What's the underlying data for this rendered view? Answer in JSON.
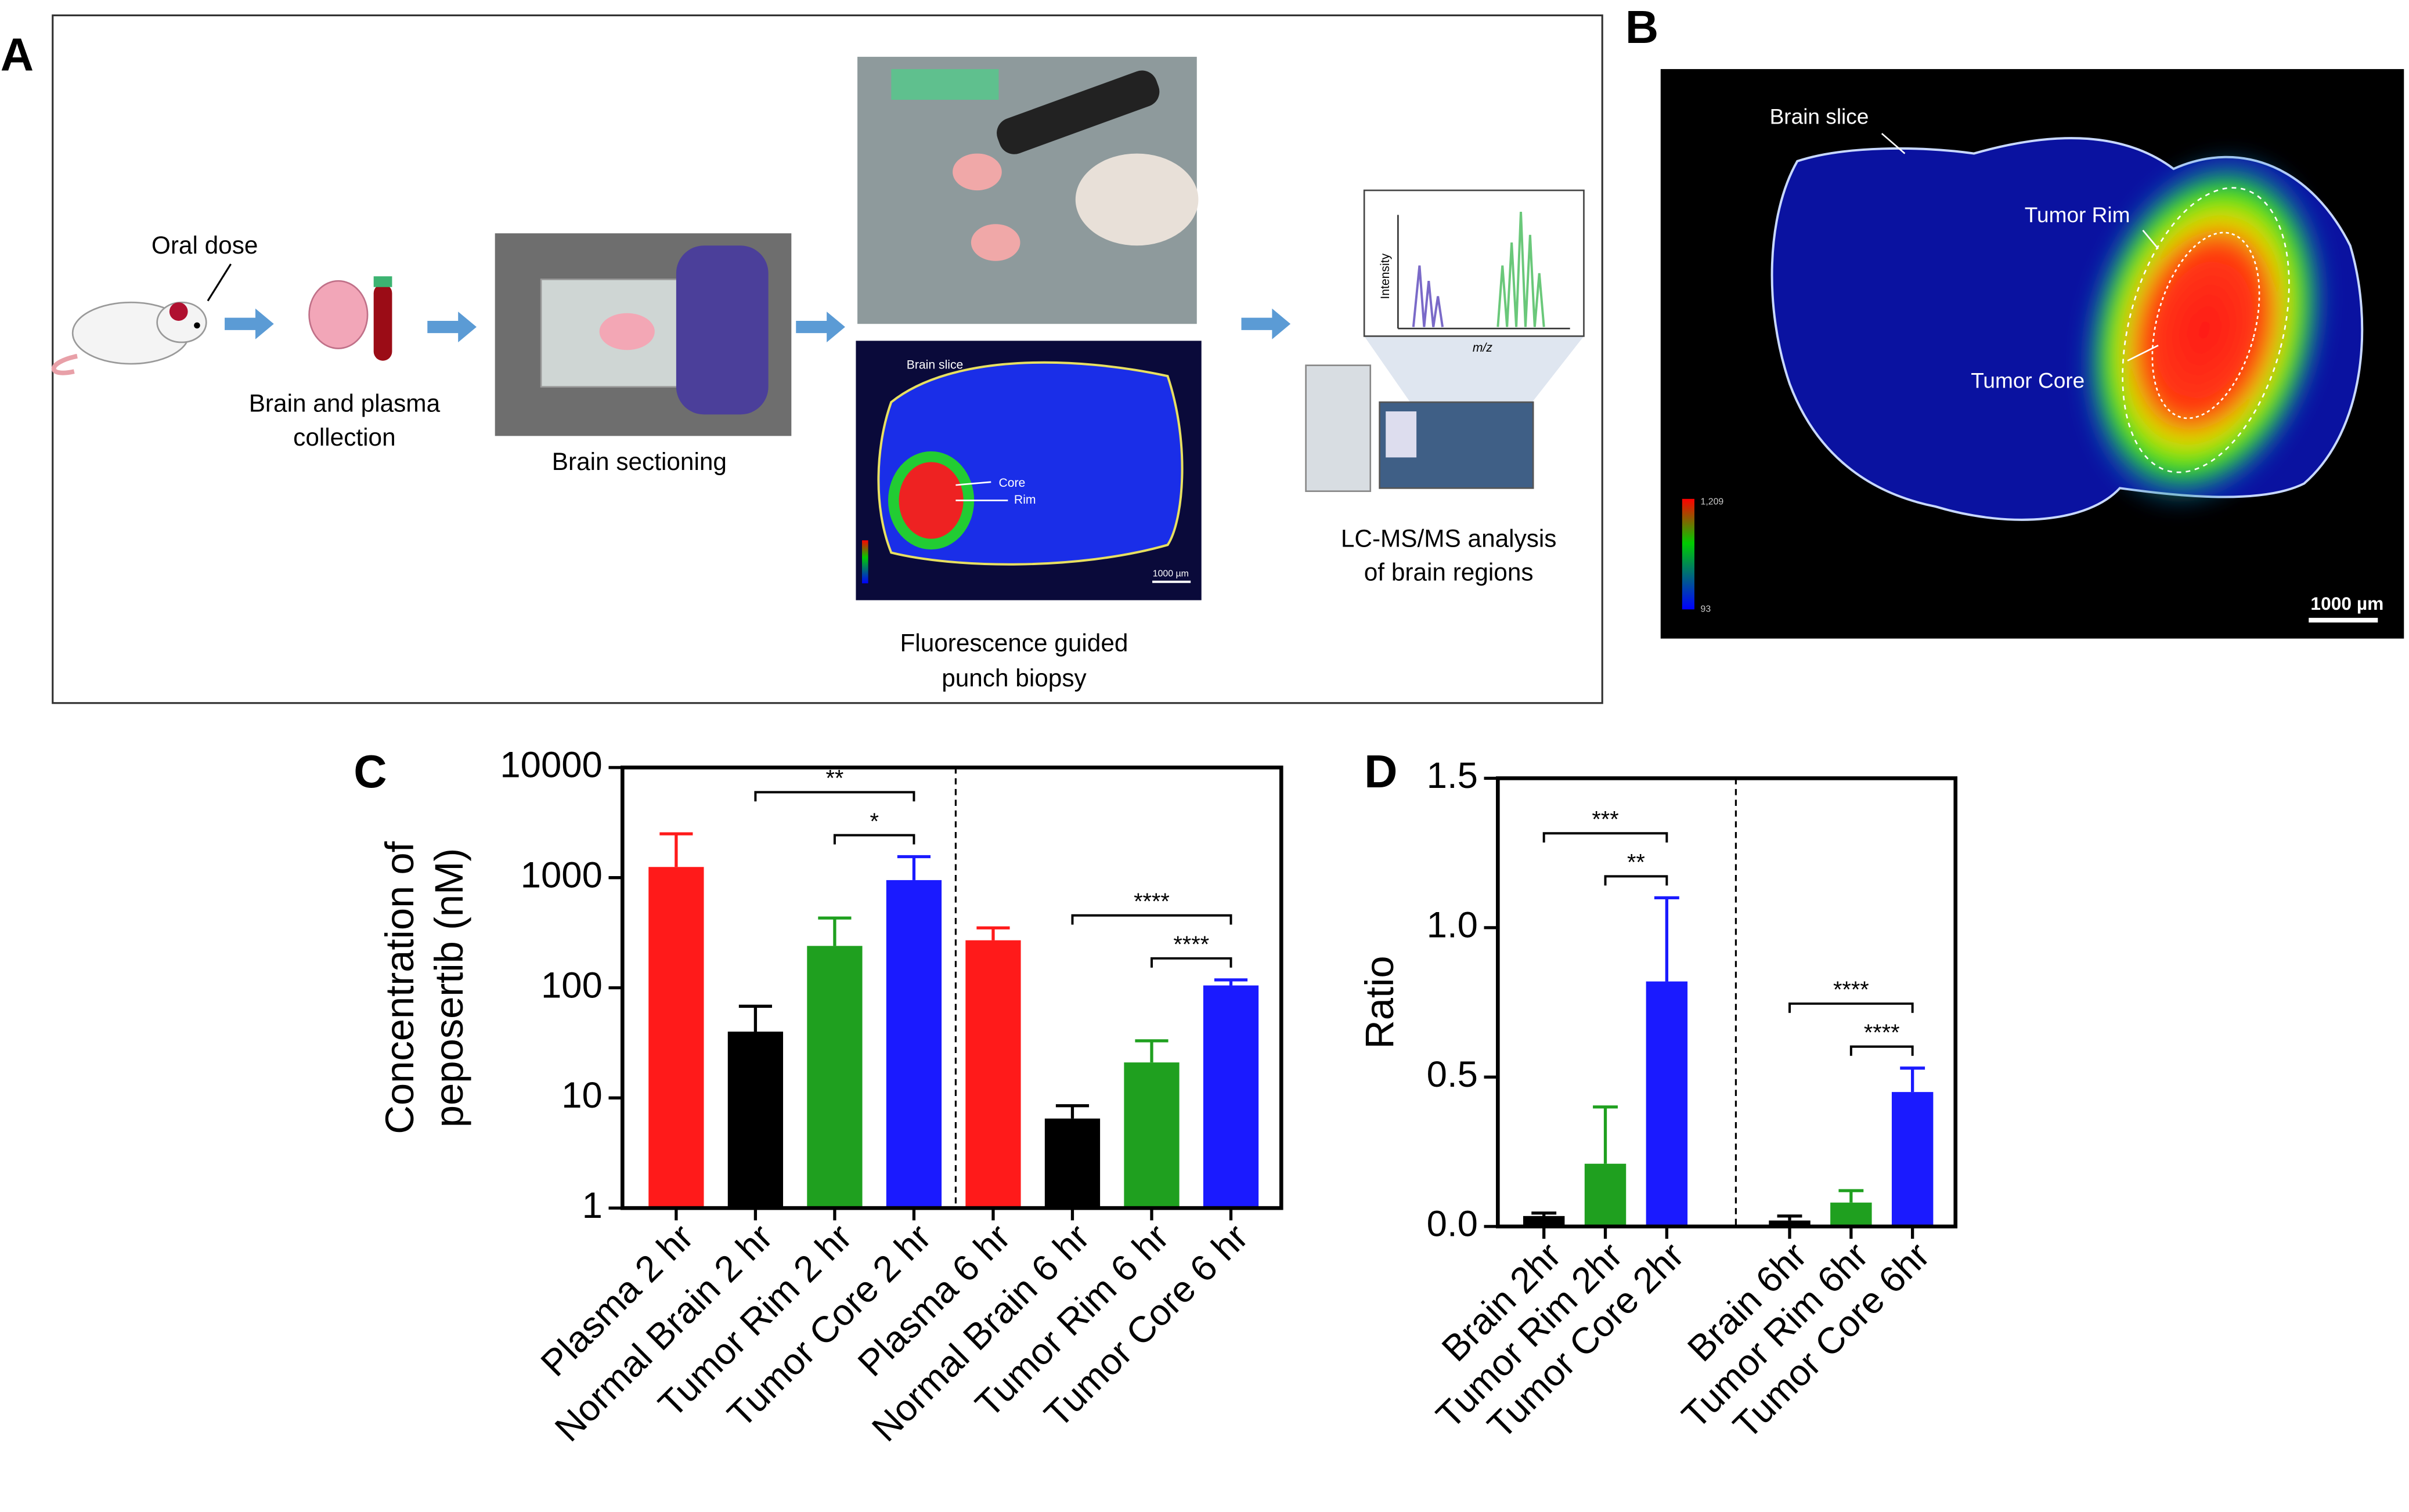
{
  "panel_labels": [
    "A",
    "B",
    "C",
    "D"
  ],
  "panel_a": {
    "oral_dose": "Oral dose",
    "collection": [
      "Brain and plasma",
      "collection"
    ],
    "sectioning": "Brain sectioning",
    "biopsy": [
      "Fluorescence guided",
      "punch biopsy"
    ],
    "analysis": [
      "LC-MS/MS analysis",
      "of brain regions"
    ],
    "image_labels": {
      "brain_slice": "Brain slice",
      "core": "Core",
      "rim": "Rim",
      "scale": "1000 µm"
    },
    "spectrum": {
      "y_label": "Intensity",
      "x_label": "m/z"
    }
  },
  "panel_b": {
    "brain_slice": "Brain slice",
    "tumor_rim": "Tumor Rim",
    "tumor_core": "Tumor Core",
    "scale": "1000 µm",
    "colorbar": [
      "1,209",
      "93"
    ]
  },
  "chart_data": [
    {
      "type": "bar",
      "y_label": [
        "Concentration of",
        "peposertib (nM)"
      ],
      "log_scale": true,
      "categories": [
        "Plasma 2 hr",
        "Normal Brain 2 hr",
        "Tumor Rim 2 hr",
        "Tumor Core 2 hr",
        "Plasma 6 hr",
        "Normal Brain 6 hr",
        "Tumor Rim 6 hr",
        "Tumor Core 6 hr"
      ],
      "values": [
        1250,
        40,
        240,
        950,
        270,
        6.5,
        21,
        105
      ],
      "errors": [
        1250,
        28,
        190,
        600,
        80,
        2,
        12,
        13
      ],
      "colors": [
        "#ff1a1a",
        "#000000",
        "#1fa01f",
        "#1a1aff",
        "#ff1a1a",
        "#000000",
        "#1fa01f",
        "#1a1aff"
      ],
      "ylim": [
        1,
        10000
      ],
      "yticks": [
        1,
        10,
        100,
        1000,
        10000
      ],
      "annotations": [
        {
          "label": "**",
          "from": 1,
          "to": 3
        },
        {
          "label": "*",
          "from": 2,
          "to": 3
        },
        {
          "label": "****",
          "from": 5,
          "to": 7
        },
        {
          "label": "****",
          "from": 6,
          "to": 7
        }
      ]
    },
    {
      "type": "bar",
      "y_label": "Ratio",
      "log_scale": false,
      "categories": [
        "Brain 2hr",
        "Tumor Rim 2hr",
        "Tumor Core 2hr",
        "Brain 6hr",
        "Tumor Rim 6hr",
        "Tumor Core 6hr"
      ],
      "values": [
        0.035,
        0.21,
        0.82,
        0.02,
        0.08,
        0.45
      ],
      "errors": [
        0.01,
        0.19,
        0.28,
        0.015,
        0.04,
        0.08
      ],
      "colors": [
        "#000000",
        "#1fa01f",
        "#1a1aff",
        "#000000",
        "#1fa01f",
        "#1a1aff"
      ],
      "ylim": [
        0,
        1.5
      ],
      "yticks": [
        {
          "value": 0,
          "label": "0.0"
        },
        0.5,
        {
          "value": 1,
          "label": "1.0"
        },
        1.5
      ],
      "annotations": [
        {
          "label": "***",
          "from": 0,
          "to": 2
        },
        {
          "label": "**",
          "from": 1,
          "to": 2
        },
        {
          "label": "****",
          "from": 3,
          "to": 5
        },
        {
          "label": "****",
          "from": 4,
          "to": 5
        }
      ]
    }
  ]
}
